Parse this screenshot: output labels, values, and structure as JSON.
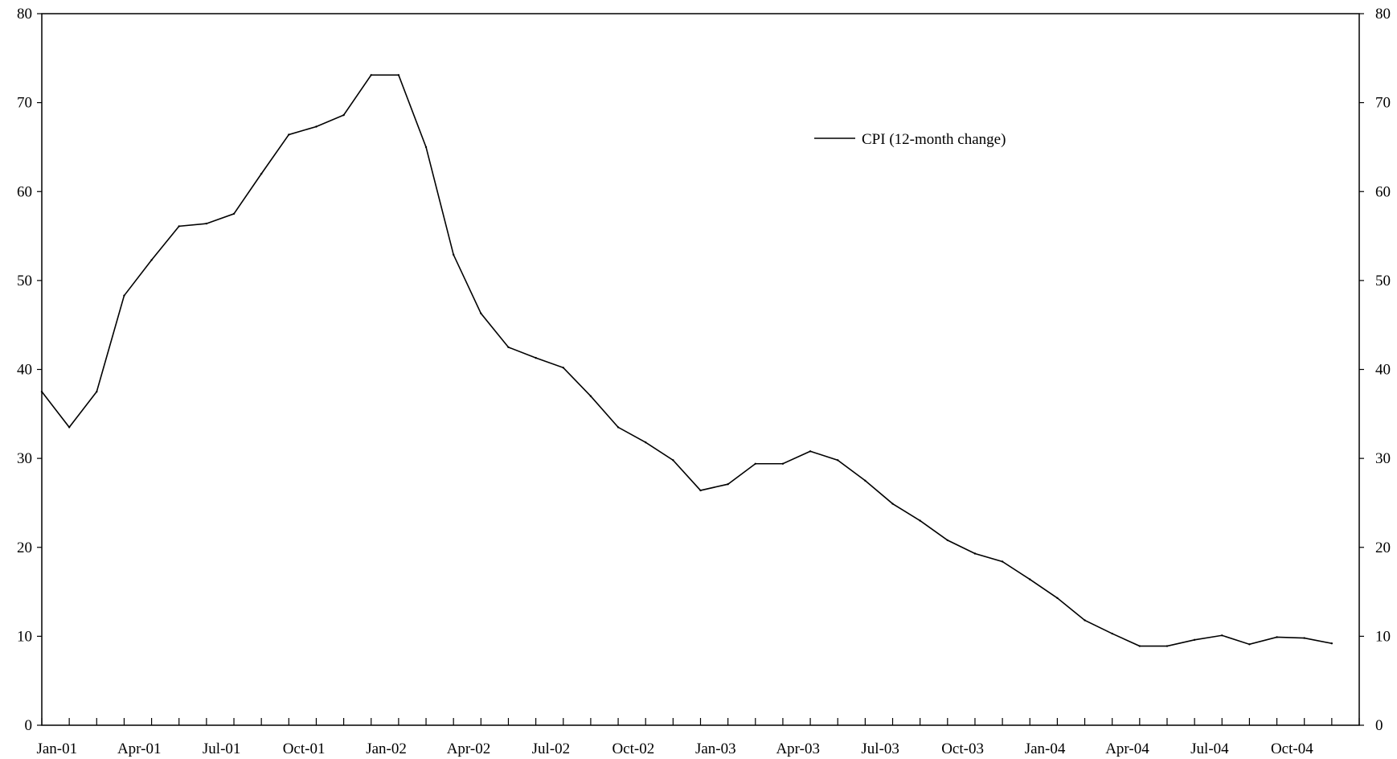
{
  "chart_data": {
    "type": "line",
    "title": "",
    "xlabel": "",
    "ylabel": "",
    "ylim": [
      0,
      80
    ],
    "yticks": [
      "0",
      "10",
      "20",
      "30",
      "40",
      "50",
      "60",
      "70",
      "80"
    ],
    "y_axis_both_sides": true,
    "grid": false,
    "legend_position": "upper-right-center",
    "x_tick_labels": [
      "Jan-01",
      "Apr-01",
      "Jul-01",
      "Oct-01",
      "Jan-02",
      "Apr-02",
      "Jul-02",
      "Oct-02",
      "Jan-03",
      "Apr-03",
      "Jul-03",
      "Oct-03",
      "Jan-04",
      "Apr-04",
      "Jul-04",
      "Oct-04"
    ],
    "x": [
      "Jan-01",
      "Feb-01",
      "Mar-01",
      "Apr-01",
      "May-01",
      "Jun-01",
      "Jul-01",
      "Aug-01",
      "Sep-01",
      "Oct-01",
      "Nov-01",
      "Dec-01",
      "Jan-02",
      "Feb-02",
      "Mar-02",
      "Apr-02",
      "May-02",
      "Jun-02",
      "Jul-02",
      "Aug-02",
      "Sep-02",
      "Oct-02",
      "Nov-02",
      "Dec-02",
      "Jan-03",
      "Feb-03",
      "Mar-03",
      "Apr-03",
      "May-03",
      "Jun-03",
      "Jul-03",
      "Aug-03",
      "Sep-03",
      "Oct-03",
      "Nov-03",
      "Dec-03",
      "Jan-04",
      "Feb-04",
      "Mar-04",
      "Apr-04",
      "May-04",
      "Jun-04",
      "Jul-04",
      "Aug-04",
      "Sep-04",
      "Oct-04",
      "Nov-04",
      "Dec-04"
    ],
    "series": [
      {
        "name": "CPI (12-month change)",
        "color": "#000000",
        "values": [
          37.5,
          33.5,
          37.5,
          48.3,
          52.3,
          56.1,
          56.4,
          57.5,
          62.0,
          66.4,
          67.3,
          68.6,
          73.1,
          73.1,
          65.0,
          52.9,
          46.3,
          42.5,
          41.3,
          40.2,
          37.0,
          33.5,
          31.8,
          29.8,
          26.4,
          27.1,
          29.4,
          29.4,
          30.8,
          29.8,
          27.5,
          24.9,
          23.0,
          20.8,
          19.3,
          18.4,
          16.4,
          14.3,
          11.8,
          10.3,
          8.9,
          8.9,
          9.6,
          10.1,
          9.1,
          9.9,
          9.8,
          9.2
        ]
      }
    ]
  }
}
